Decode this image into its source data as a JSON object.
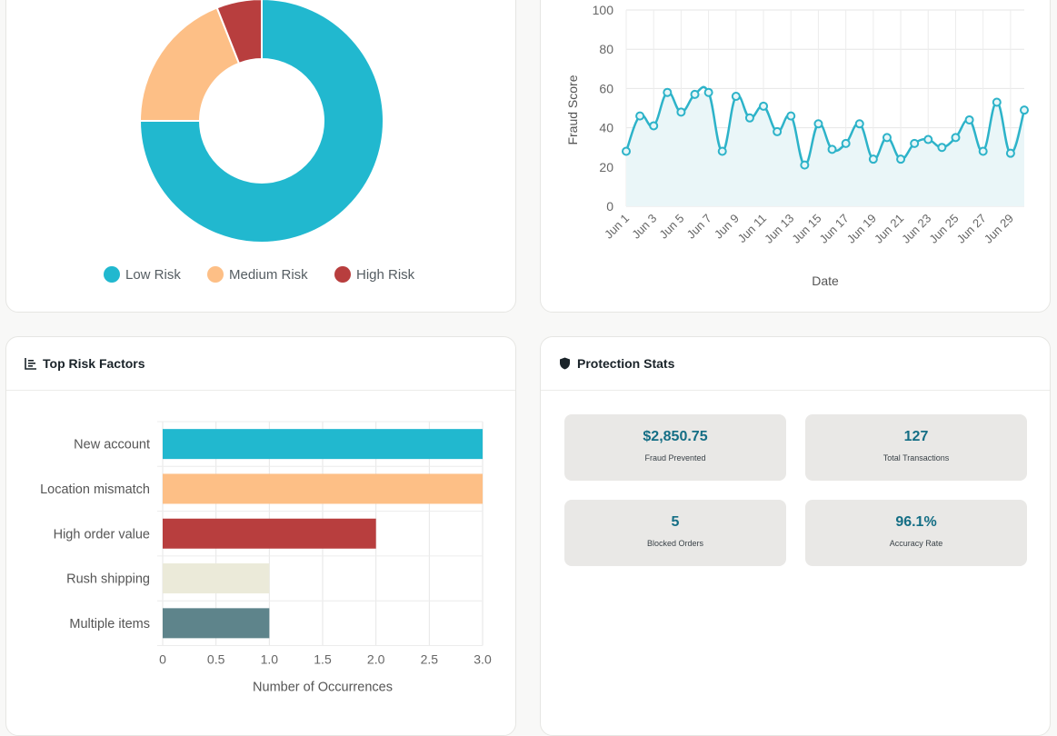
{
  "risk_distribution": {
    "chart_data": {
      "type": "pie",
      "donut": true,
      "labels": [
        "Low Risk",
        "Medium Risk",
        "High Risk"
      ],
      "values": [
        75,
        19,
        6
      ],
      "colors": [
        "#21b8cf",
        "#fdbf86",
        "#b83e3e"
      ],
      "legend_position": "bottom"
    }
  },
  "fraud_trend": {
    "chart_data": {
      "type": "area",
      "x": [
        "Jun 1",
        "Jun 2",
        "Jun 3",
        "Jun 4",
        "Jun 5",
        "Jun 6",
        "Jun 7",
        "Jun 8",
        "Jun 9",
        "Jun 10",
        "Jun 11",
        "Jun 12",
        "Jun 13",
        "Jun 14",
        "Jun 15",
        "Jun 16",
        "Jun 17",
        "Jun 18",
        "Jun 19",
        "Jun 20",
        "Jun 21",
        "Jun 22",
        "Jun 23",
        "Jun 24",
        "Jun 25",
        "Jun 26",
        "Jun 27",
        "Jun 28",
        "Jun 29",
        "Jun 30"
      ],
      "tick_labels": [
        "Jun 1",
        "Jun 3",
        "Jun 5",
        "Jun 7",
        "Jun 9",
        "Jun 11",
        "Jun 13",
        "Jun 15",
        "Jun 17",
        "Jun 19",
        "Jun 21",
        "Jun 23",
        "Jun 25",
        "Jun 27",
        "Jun 29"
      ],
      "series": [
        {
          "values": [
            28,
            46,
            41,
            58,
            48,
            57,
            58,
            28,
            56,
            45,
            51,
            38,
            46,
            21,
            42,
            29,
            32,
            42,
            24,
            35,
            24,
            32,
            34,
            30,
            35,
            44,
            28,
            53,
            27,
            49
          ]
        }
      ],
      "xlabel": "Date",
      "ylabel": "Fraud Score",
      "ylim": [
        0,
        100
      ],
      "yticks": [
        0,
        20,
        40,
        60,
        80,
        100
      ],
      "color": "#2db3c9",
      "fill": "#eaf6f8",
      "grid": true
    }
  },
  "risk_factors": {
    "title": "Top Risk Factors",
    "icon": "bar-chart-icon",
    "chart_data": {
      "type": "bar",
      "orientation": "horizontal",
      "categories": [
        "New account",
        "Location mismatch",
        "High order value",
        "Rush shipping",
        "Multiple items"
      ],
      "values": [
        3,
        3,
        2,
        1,
        1
      ],
      "colors": [
        "#21b8cf",
        "#fdbf86",
        "#b83e3e",
        "#ebead9",
        "#5e848b"
      ],
      "xlabel": "Number of Occurrences",
      "xlim": [
        0,
        3
      ],
      "xticks": [
        "0",
        "0.5",
        "1.0",
        "1.5",
        "2.0",
        "2.5",
        "3.0"
      ],
      "grid": true
    }
  },
  "protection": {
    "title": "Protection Stats",
    "icon": "shield-icon",
    "stats": [
      {
        "value": "$2,850.75",
        "label": "Fraud Prevented"
      },
      {
        "value": "127",
        "label": "Total Transactions"
      },
      {
        "value": "5",
        "label": "Blocked Orders"
      },
      {
        "value": "96.1%",
        "label": "Accuracy Rate"
      }
    ]
  }
}
